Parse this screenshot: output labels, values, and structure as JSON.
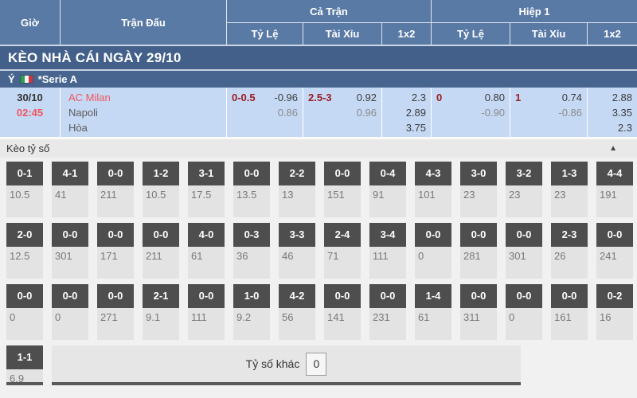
{
  "header": {
    "time": "Giờ",
    "match": "Trận Đấu",
    "full_match": "Cả Trận",
    "first_half": "Hiệp 1",
    "handicap": "Tỷ Lệ",
    "over_under": "Tài Xỉu",
    "one_x_two": "1x2"
  },
  "title_bar": {
    "text": "KÈO NHÀ CÁI NGÀY 29/10"
  },
  "league_bar": {
    "country": "Ý",
    "league": "*Serie A"
  },
  "match": {
    "date": "30/10",
    "time": "02:45",
    "home": "AC Milan",
    "away": "Napoli",
    "draw": "Hòa",
    "ft_handicap": {
      "line": "0-0.5",
      "v1": "-0.96",
      "v2": "0.86"
    },
    "ft_over_under": {
      "line": "2.5-3",
      "v1": "0.92",
      "v2": "0.96"
    },
    "ft_1x2": [
      "2.3",
      "2.89",
      "3.75"
    ],
    "h1_handicap": {
      "line": "0",
      "v1": "0.80",
      "v2": "-0.90"
    },
    "h1_over_under": {
      "line": "1",
      "v1": "0.74",
      "v2": "-0.86"
    },
    "h1_1x2": [
      "2.88",
      "3.35",
      "2.3"
    ]
  },
  "score_section": {
    "title": "Kèo tỷ số",
    "collapse_icon": "▲",
    "rows": [
      [
        {
          "score": "0-1",
          "odds": "10.5"
        },
        {
          "score": "4-1",
          "odds": "41"
        },
        {
          "score": "0-0",
          "odds": "211"
        },
        {
          "score": "1-2",
          "odds": "10.5"
        },
        {
          "score": "3-1",
          "odds": "17.5"
        },
        {
          "score": "0-0",
          "odds": "13.5"
        },
        {
          "score": "2-2",
          "odds": "13"
        },
        {
          "score": "0-0",
          "odds": "151"
        },
        {
          "score": "0-4",
          "odds": "91"
        },
        {
          "score": "4-3",
          "odds": "101"
        },
        {
          "score": "3-0",
          "odds": "23"
        },
        {
          "score": "3-2",
          "odds": "23"
        },
        {
          "score": "1-3",
          "odds": "23"
        },
        {
          "score": "4-4",
          "odds": "191"
        }
      ],
      [
        {
          "score": "2-0",
          "odds": "12.5"
        },
        {
          "score": "0-0",
          "odds": "301"
        },
        {
          "score": "0-0",
          "odds": "171"
        },
        {
          "score": "0-0",
          "odds": "211"
        },
        {
          "score": "4-0",
          "odds": "61"
        },
        {
          "score": "0-3",
          "odds": "36"
        },
        {
          "score": "3-3",
          "odds": "46"
        },
        {
          "score": "2-4",
          "odds": "71"
        },
        {
          "score": "3-4",
          "odds": "111"
        },
        {
          "score": "0-0",
          "odds": "0"
        },
        {
          "score": "0-0",
          "odds": "281"
        },
        {
          "score": "0-0",
          "odds": "301"
        },
        {
          "score": "2-3",
          "odds": "26"
        },
        {
          "score": "0-0",
          "odds": "241"
        }
      ],
      [
        {
          "score": "0-0",
          "odds": "0"
        },
        {
          "score": "0-0",
          "odds": "0"
        },
        {
          "score": "0-0",
          "odds": "271"
        },
        {
          "score": "2-1",
          "odds": "9.1"
        },
        {
          "score": "0-0",
          "odds": "111"
        },
        {
          "score": "1-0",
          "odds": "9.2"
        },
        {
          "score": "4-2",
          "odds": "56"
        },
        {
          "score": "0-0",
          "odds": "141"
        },
        {
          "score": "0-0",
          "odds": "231"
        },
        {
          "score": "1-4",
          "odds": "61"
        },
        {
          "score": "0-0",
          "odds": "311"
        },
        {
          "score": "0-0",
          "odds": "0"
        },
        {
          "score": "0-0",
          "odds": "161"
        },
        {
          "score": "0-2",
          "odds": "16"
        }
      ],
      [
        {
          "score": "1-1",
          "odds": "6.9"
        }
      ]
    ],
    "other_label": "Tỷ số khác",
    "other_value": "0"
  },
  "colors": {
    "header_blue": "#5a7aa6",
    "title_blue": "#42608a",
    "league_blue": "#47658e",
    "row_light_blue": "#c6d9f4",
    "handicap_maroon": "#9a1c20",
    "team_red": "#f0545e",
    "score_box_gray": "#4e4e4e"
  }
}
